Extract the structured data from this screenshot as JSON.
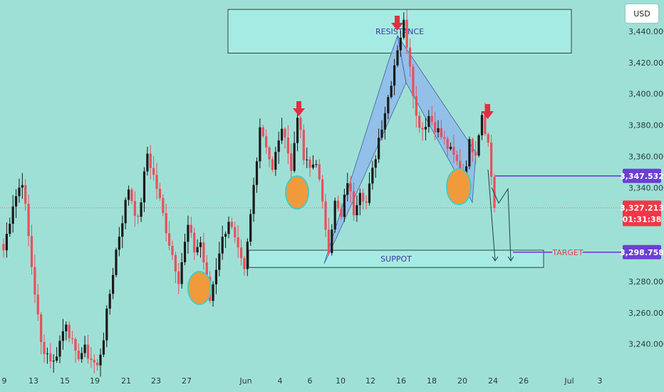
{
  "currency": "USD",
  "chart_data": {
    "type": "candlestick",
    "title": "",
    "xlabel": "",
    "ylabel": "",
    "ylim": [
      3223,
      3460
    ],
    "grid": false,
    "y_ticks": [
      "3,440.000",
      "3,420.000",
      "3,400.000",
      "3,380.000",
      "3,360.000",
      "3,340.000",
      "3,280.000",
      "3,260.000",
      "3,240.000"
    ],
    "y_tick_values": [
      3440,
      3420,
      3400,
      3380,
      3360,
      3340,
      3280,
      3260,
      3240
    ],
    "x_ticks": [
      "9",
      "13",
      "15",
      "19",
      "21",
      "23",
      "27",
      "Jun",
      "4",
      "6",
      "10",
      "12",
      "16",
      "18",
      "20",
      "24",
      "26",
      "Jul",
      "3"
    ],
    "price_tags": {
      "level": {
        "value": 3347.532,
        "label": "3,347.532",
        "color": "#6a3fd6"
      },
      "current": {
        "value": 3327.213,
        "label": "3,327.213",
        "countdown": "01:31:38",
        "color": "#f23645"
      },
      "target": {
        "value": 3298.758,
        "label": "3,298.758",
        "color": "#6a3fd6"
      }
    },
    "zones": {
      "resistance": {
        "label": "RESISTANCE",
        "y_top": 3454,
        "y_bottom": 3426
      },
      "support": {
        "label": "SUPPOT",
        "y_top": 3300,
        "y_bottom": 3289
      }
    },
    "annotations": {
      "target_label": "TARGET",
      "arrows": [
        "sell-signal-arrow",
        "sell-signal-arrow",
        "sell-signal-arrow"
      ],
      "circles": [
        "bottom-marker",
        "bottom-marker",
        "bottom-marker"
      ]
    },
    "colors": {
      "up": "#1a1a1a",
      "down": "#e8505b",
      "zone": "#9ae6de",
      "wedge": "#90b8ec"
    },
    "anchors": [
      {
        "i": 0,
        "p": 3300
      },
      {
        "i": 3,
        "p": 3330
      },
      {
        "i": 6,
        "p": 3345
      },
      {
        "i": 9,
        "p": 3290
      },
      {
        "i": 12,
        "p": 3240
      },
      {
        "i": 16,
        "p": 3228
      },
      {
        "i": 20,
        "p": 3255
      },
      {
        "i": 23,
        "p": 3232
      },
      {
        "i": 26,
        "p": 3236
      },
      {
        "i": 30,
        "p": 3225
      },
      {
        "i": 32,
        "p": 3245
      },
      {
        "i": 36,
        "p": 3300
      },
      {
        "i": 40,
        "p": 3340
      },
      {
        "i": 43,
        "p": 3318
      },
      {
        "i": 46,
        "p": 3362
      },
      {
        "i": 49,
        "p": 3340
      },
      {
        "i": 53,
        "p": 3305
      },
      {
        "i": 56,
        "p": 3282
      },
      {
        "i": 59,
        "p": 3315
      },
      {
        "i": 61,
        "p": 3300
      },
      {
        "i": 63,
        "p": 3305
      },
      {
        "i": 66,
        "p": 3268
      },
      {
        "i": 69,
        "p": 3300
      },
      {
        "i": 72,
        "p": 3320
      },
      {
        "i": 75,
        "p": 3298
      },
      {
        "i": 77,
        "p": 3285
      },
      {
        "i": 79,
        "p": 3322
      },
      {
        "i": 82,
        "p": 3380
      },
      {
        "i": 84,
        "p": 3368
      },
      {
        "i": 86,
        "p": 3350
      },
      {
        "i": 88,
        "p": 3372
      },
      {
        "i": 90,
        "p": 3376
      },
      {
        "i": 92,
        "p": 3350
      },
      {
        "i": 94,
        "p": 3388
      },
      {
        "i": 96,
        "p": 3358
      },
      {
        "i": 98,
        "p": 3352
      },
      {
        "i": 100,
        "p": 3358
      },
      {
        "i": 102,
        "p": 3328
      },
      {
        "i": 104,
        "p": 3302
      },
      {
        "i": 106,
        "p": 3330
      },
      {
        "i": 108,
        "p": 3320
      },
      {
        "i": 110,
        "p": 3345
      },
      {
        "i": 112,
        "p": 3325
      },
      {
        "i": 114,
        "p": 3340
      },
      {
        "i": 116,
        "p": 3330
      },
      {
        "i": 118,
        "p": 3350
      },
      {
        "i": 120,
        "p": 3372
      },
      {
        "i": 123,
        "p": 3398
      },
      {
        "i": 126,
        "p": 3430
      },
      {
        "i": 128,
        "p": 3445
      },
      {
        "i": 130,
        "p": 3420
      },
      {
        "i": 132,
        "p": 3385
      },
      {
        "i": 134,
        "p": 3378
      },
      {
        "i": 136,
        "p": 3386
      },
      {
        "i": 139,
        "p": 3376
      },
      {
        "i": 142,
        "p": 3366
      },
      {
        "i": 145,
        "p": 3356
      },
      {
        "i": 147,
        "p": 3346
      },
      {
        "i": 149,
        "p": 3368
      },
      {
        "i": 151,
        "p": 3364
      },
      {
        "i": 153,
        "p": 3388
      },
      {
        "i": 155,
        "p": 3368
      },
      {
        "i": 157,
        "p": 3327
      }
    ]
  }
}
